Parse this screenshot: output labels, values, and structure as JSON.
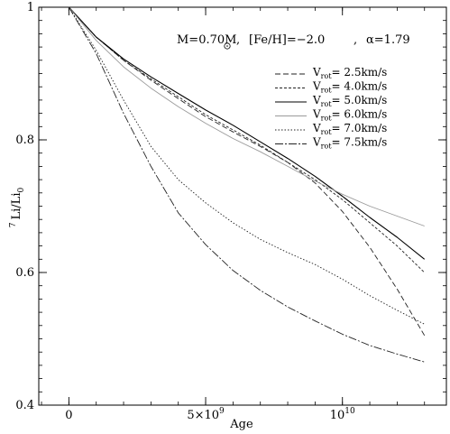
{
  "chart_data": {
    "type": "line",
    "title": {
      "mass": "M=0.70M",
      "metallicity": "[Fe/H]=−2.0",
      "alpha": "α=1.79"
    },
    "xlabel": "Age",
    "ylabel": {
      "prefix": "7",
      "main": "Li/Li",
      "sub": "0"
    },
    "xlim": [
      -1100000000.0,
      13800000000.0
    ],
    "ylim": [
      0.4,
      1.0
    ],
    "x_ticks": [
      {
        "value": 0,
        "label": "0"
      },
      {
        "value": 5000000000.0,
        "label": "5×10",
        "sup": "9"
      },
      {
        "value": 10000000000.0,
        "label": "10",
        "sup": "10"
      }
    ],
    "x_minor_step": 1000000000.0,
    "y_ticks": [
      {
        "value": 0.4,
        "label": "0.4"
      },
      {
        "value": 0.6,
        "label": "0.6"
      },
      {
        "value": 0.8,
        "label": "0.8"
      },
      {
        "value": 1.0,
        "label": "1"
      }
    ],
    "y_minor_step": 0.02,
    "grid": false,
    "legend_position": "top-right",
    "series": [
      {
        "name": "V_rot= 2.5km/s",
        "legend_main": "V",
        "legend_sub": "rot",
        "legend_value": "= 2.5km/s",
        "dash": "6,3",
        "color": "#222222",
        "width": 0.9,
        "x": [
          0,
          1000000000.0,
          2000000000.0,
          3000000000.0,
          4000000000.0,
          5000000000.0,
          6000000000.0,
          7000000000.0,
          8000000000.0,
          9000000000.0,
          10000000000.0,
          11000000000.0,
          12000000000.0,
          13000000000.0
        ],
        "y": [
          1.0,
          0.955,
          0.92,
          0.89,
          0.862,
          0.835,
          0.812,
          0.79,
          0.766,
          0.735,
          0.692,
          0.638,
          0.575,
          0.505
        ]
      },
      {
        "name": "V_rot= 4.0km/s",
        "legend_main": "V",
        "legend_sub": "rot",
        "legend_value": "= 4.0km/s",
        "dash": "3,2",
        "color": "#222222",
        "width": 0.9,
        "x": [
          0,
          1000000000.0,
          2000000000.0,
          3000000000.0,
          4000000000.0,
          5000000000.0,
          6000000000.0,
          7000000000.0,
          8000000000.0,
          9000000000.0,
          10000000000.0,
          11000000000.0,
          12000000000.0,
          13000000000.0
        ],
        "y": [
          1.0,
          0.955,
          0.92,
          0.892,
          0.865,
          0.838,
          0.815,
          0.792,
          0.766,
          0.74,
          0.71,
          0.675,
          0.64,
          0.6
        ]
      },
      {
        "name": "V_rot= 5.0km/s",
        "legend_main": "V",
        "legend_sub": "rot",
        "legend_value": "= 5.0km/s",
        "dash": "",
        "color": "#000000",
        "width": 1.1,
        "x": [
          0,
          1000000000.0,
          2000000000.0,
          3000000000.0,
          4000000000.0,
          5000000000.0,
          6000000000.0,
          7000000000.0,
          8000000000.0,
          9000000000.0,
          10000000000.0,
          11000000000.0,
          12000000000.0,
          13000000000.0
        ],
        "y": [
          1.0,
          0.955,
          0.922,
          0.895,
          0.87,
          0.845,
          0.822,
          0.797,
          0.772,
          0.745,
          0.715,
          0.683,
          0.653,
          0.62
        ]
      },
      {
        "name": "V_rot= 6.0km/s",
        "legend_main": "V",
        "legend_sub": "rot",
        "legend_value": "= 6.0km/s",
        "dash": "",
        "color": "#9a9a9a",
        "width": 0.9,
        "x": [
          0,
          1000000000.0,
          2000000000.0,
          3000000000.0,
          4000000000.0,
          5000000000.0,
          6000000000.0,
          7000000000.0,
          8000000000.0,
          9000000000.0,
          10000000000.0,
          11000000000.0,
          12000000000.0,
          13000000000.0
        ],
        "y": [
          1.0,
          0.95,
          0.91,
          0.878,
          0.85,
          0.825,
          0.802,
          0.782,
          0.76,
          0.738,
          0.718,
          0.7,
          0.685,
          0.67
        ]
      },
      {
        "name": "V_rot= 7.0km/s",
        "legend_main": "V",
        "legend_sub": "rot",
        "legend_value": "= 7.0km/s",
        "dash": "1.5,2",
        "color": "#222222",
        "width": 0.9,
        "x": [
          0,
          1000000000.0,
          2000000000.0,
          3000000000.0,
          4000000000.0,
          5000000000.0,
          6000000000.0,
          7000000000.0,
          8000000000.0,
          9000000000.0,
          10000000000.0,
          11000000000.0,
          12000000000.0,
          13000000000.0
        ],
        "y": [
          1.0,
          0.935,
          0.86,
          0.79,
          0.74,
          0.705,
          0.675,
          0.65,
          0.63,
          0.612,
          0.59,
          0.565,
          0.543,
          0.522
        ]
      },
      {
        "name": "V_rot= 7.5km/s",
        "legend_main": "V",
        "legend_sub": "rot",
        "legend_value": "= 7.5km/s",
        "dash": "9,2,2,2",
        "color": "#222222",
        "width": 0.9,
        "x": [
          0,
          1000000000.0,
          2000000000.0,
          3000000000.0,
          4000000000.0,
          5000000000.0,
          6000000000.0,
          7000000000.0,
          8000000000.0,
          9000000000.0,
          10000000000.0,
          11000000000.0,
          12000000000.0,
          13000000000.0
        ],
        "y": [
          1.0,
          0.93,
          0.84,
          0.76,
          0.69,
          0.642,
          0.603,
          0.573,
          0.548,
          0.527,
          0.507,
          0.49,
          0.477,
          0.465
        ]
      }
    ]
  }
}
